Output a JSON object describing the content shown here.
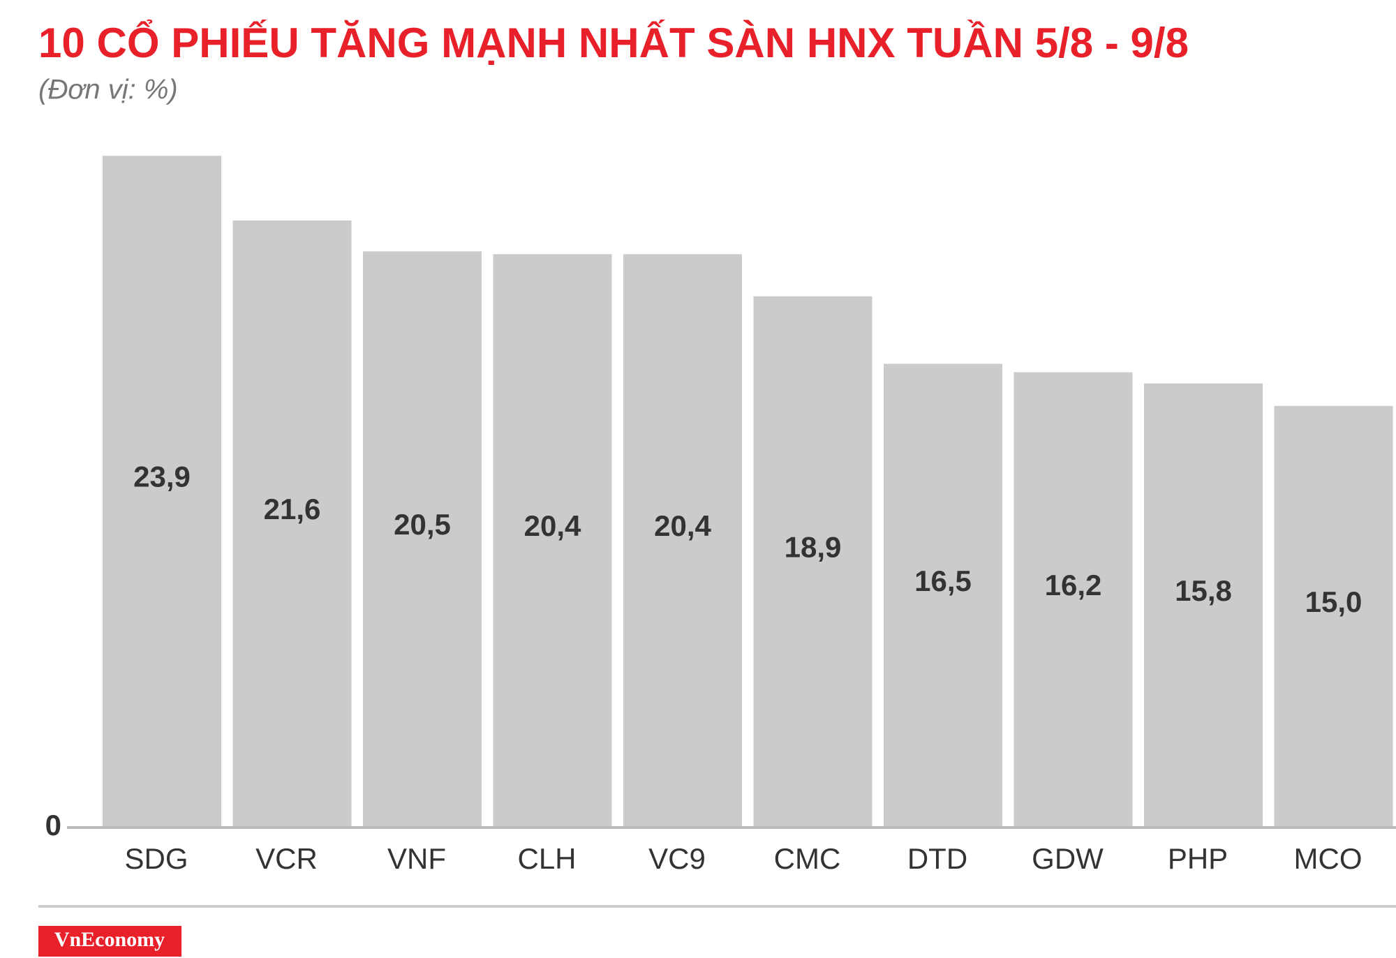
{
  "chart_data": {
    "type": "bar",
    "title": "10 CỔ PHIẾU TĂNG MẠNH NHẤT SÀN HNX TUẦN 5/8 - 9/8",
    "subtitle": "(Đơn vị: %)",
    "categories": [
      "SDG",
      "VCR",
      "VNF",
      "CLH",
      "VC9",
      "CMC",
      "DTD",
      "GDW",
      "PHP",
      "MCO"
    ],
    "values": [
      23.9,
      21.6,
      20.5,
      20.4,
      20.4,
      18.9,
      16.5,
      16.2,
      15.8,
      15.0
    ],
    "value_labels": [
      "23,9",
      "21,6",
      "20,5",
      "20,4",
      "20,4",
      "18,9",
      "16,5",
      "16,2",
      "15,8",
      "15,0"
    ],
    "color": "#cccbcc",
    "ylim": [
      0,
      25
    ],
    "yticks": [
      0
    ],
    "grid": false,
    "source": "VnEconomy"
  }
}
